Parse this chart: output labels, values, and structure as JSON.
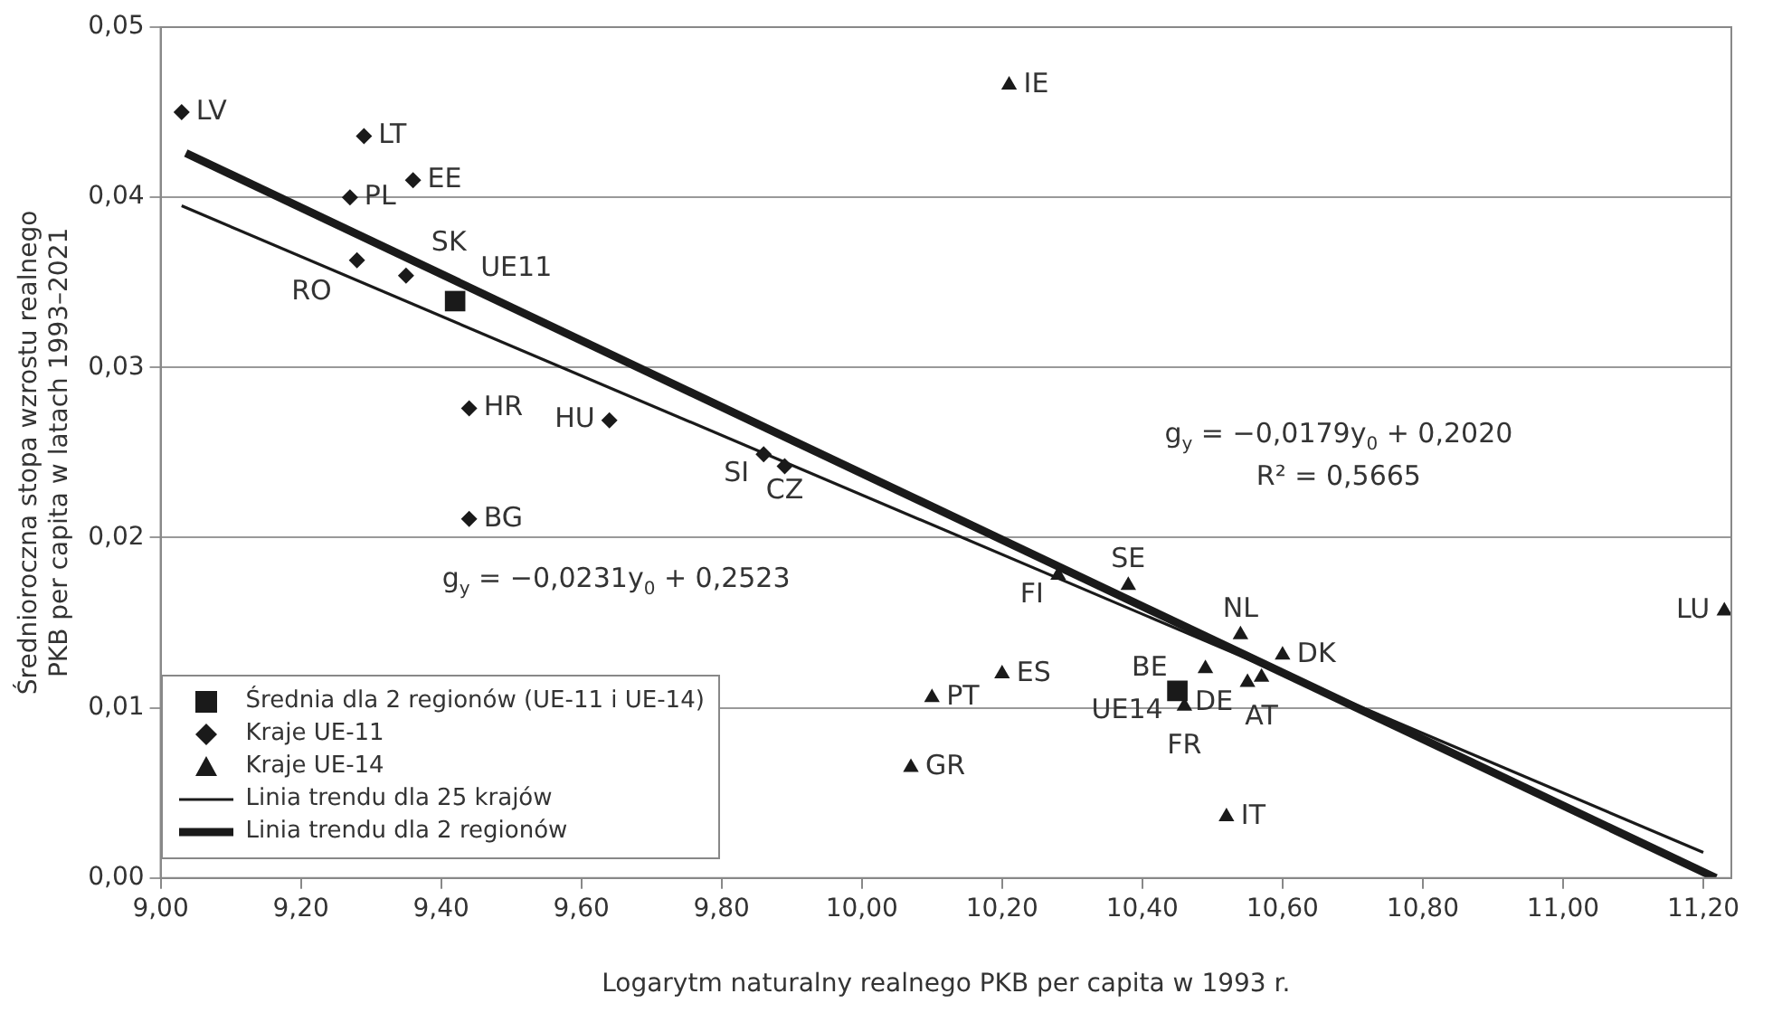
{
  "chart_data": {
    "type": "scatter",
    "xlabel": "Logarytm naturalny realnego PKB per capita w 1993 r.",
    "ylabel": "Średnioroczna stopa wzrostu realnego PKB per capita w latach 1993–2021",
    "xlim": [
      9,
      11.24
    ],
    "xticks": [
      {
        "value": 9,
        "label": "9,00"
      },
      {
        "value": 9.2,
        "label": "9,20"
      },
      {
        "value": 9.4,
        "label": "9,40"
      },
      {
        "value": 9.6,
        "label": "9,60"
      },
      {
        "value": 9.8,
        "label": "9,80"
      },
      {
        "value": 10,
        "label": "10,00"
      },
      {
        "value": 10.2,
        "label": "10,20"
      },
      {
        "value": 10.4,
        "label": "10,40"
      },
      {
        "value": 10.6,
        "label": "10,60"
      },
      {
        "value": 10.8,
        "label": "10,80"
      },
      {
        "value": 11,
        "label": "11,00"
      },
      {
        "value": 11.2,
        "label": "11,20"
      }
    ],
    "ylim": [
      0,
      0.05
    ],
    "yticks": [
      {
        "value": 0,
        "label": "0,00"
      },
      {
        "value": 0.01,
        "label": "0,01"
      },
      {
        "value": 0.02,
        "label": "0,02"
      },
      {
        "value": 0.03,
        "label": "0,03"
      },
      {
        "value": 0.04,
        "label": "0,04"
      },
      {
        "value": 0.05,
        "label": "0,05"
      }
    ],
    "grid": "y",
    "legend": "bottom left",
    "series": [
      {
        "name": "Średnia dla 2 regionów (UE-11 i UE-14)",
        "marker": "square",
        "color": "#1a1a1a",
        "x": [
          9.42,
          10.45
        ],
        "values": [
          0.0339,
          0.011
        ]
      },
      {
        "name": "Kraje UE-11",
        "marker": "diamond",
        "color": "#1a1a1a",
        "x": [
          9.03,
          9.29,
          9.36,
          9.27,
          9.28,
          9.35,
          9.44,
          9.64,
          9.86,
          9.89,
          9.44
        ],
        "values": [
          0.045,
          0.0436,
          0.041,
          0.04,
          0.0363,
          0.0354,
          0.0276,
          0.0269,
          0.0249,
          0.0242,
          0.0211
        ]
      },
      {
        "name": "Kraje UE-14",
        "marker": "triangle",
        "color": "#1a1a1a",
        "x": [
          10.21,
          10.28,
          10.38,
          10.54,
          10.6,
          10.49,
          10.57,
          10.55,
          10.46,
          10.1,
          10.2,
          10.07,
          10.52,
          11.23
        ],
        "values": [
          0.0466,
          0.0178,
          0.0172,
          0.0143,
          0.0131,
          0.0123,
          0.0118,
          0.0115,
          0.0101,
          0.0106,
          0.012,
          0.0065,
          0.0036,
          0.0157
        ]
      },
      {
        "name": "Linia trendu dla 25 krajów",
        "type": "line",
        "color": "#1a1a1a",
        "x": [
          9.03,
          11.2
        ],
        "values": [
          0.0395,
          0.0015
        ]
      },
      {
        "name": "Linia trendu dla 2 regionów",
        "type": "line",
        "color": "#1a1a1a",
        "x": [
          9.036,
          11.218
        ],
        "values": [
          0.0426,
          0
        ]
      }
    ],
    "annotations": [
      {
        "text": "LV",
        "x": 9.03,
        "y": 0.045
      },
      {
        "text": "LT",
        "x": 9.29,
        "y": 0.0436
      },
      {
        "text": "EE",
        "x": 9.36,
        "y": 0.041
      },
      {
        "text": "PL",
        "x": 9.27,
        "y": 0.04
      },
      {
        "text": "RO",
        "x": 9.28,
        "y": 0.0363
      },
      {
        "text": "SK",
        "x": 9.35,
        "y": 0.0354
      },
      {
        "text": "UE11",
        "x": 9.42,
        "y": 0.0339
      },
      {
        "text": "HR",
        "x": 9.44,
        "y": 0.0276
      },
      {
        "text": "HU",
        "x": 9.64,
        "y": 0.0269
      },
      {
        "text": "SI",
        "x": 9.86,
        "y": 0.0249
      },
      {
        "text": "CZ",
        "x": 9.89,
        "y": 0.0242
      },
      {
        "text": "BG",
        "x": 9.44,
        "y": 0.0211
      },
      {
        "text": "IE",
        "x": 10.21,
        "y": 0.0466
      },
      {
        "text": "FI",
        "x": 10.28,
        "y": 0.0178
      },
      {
        "text": "SE",
        "x": 10.38,
        "y": 0.0172
      },
      {
        "text": "NL",
        "x": 10.54,
        "y": 0.0143
      },
      {
        "text": "DK",
        "x": 10.6,
        "y": 0.0131
      },
      {
        "text": "BE",
        "x": 10.49,
        "y": 0.0123
      },
      {
        "text": "AT",
        "x": 10.57,
        "y": 0.0118
      },
      {
        "text": "DE",
        "x": 10.55,
        "y": 0.0115
      },
      {
        "text": "UE14",
        "x": 10.45,
        "y": 0.011
      },
      {
        "text": "FR",
        "x": 10.46,
        "y": 0.0101
      },
      {
        "text": "PT",
        "x": 10.1,
        "y": 0.0106
      },
      {
        "text": "ES",
        "x": 10.2,
        "y": 0.012
      },
      {
        "text": "GR",
        "x": 10.07,
        "y": 0.0065
      },
      {
        "text": "IT",
        "x": 10.52,
        "y": 0.0036
      },
      {
        "text": "LU",
        "x": 11.23,
        "y": 0.0157
      },
      "g$_{y}$ = −0,0231y$_{0}$ + 0,2523",
      "g$_{y}$ = −0,0179y$_{0}$ + 0,2020",
      "R² = 0,5665"
    ]
  }
}
